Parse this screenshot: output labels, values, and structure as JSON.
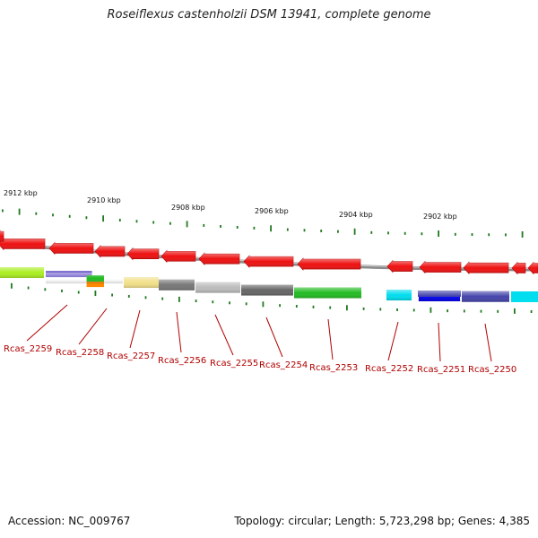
{
  "title": "Roseiflexus castenholzii DSM 13941, complete genome",
  "accession_text": "Accession: NC_009767",
  "summary_text": "Topology: circular; Length: 5,723,298 bp; Genes: 4,385",
  "colors": {
    "cds": "#ee1111",
    "label": "#b00000",
    "tick": "#1f7a1f",
    "backbone": "#8a8a8a"
  },
  "scale": {
    "tick_labels": [
      "2912 kbp",
      "2910 kbp",
      "2908 kbp",
      "2906 kbp",
      "2904 kbp",
      "2902 kbp"
    ]
  },
  "genes": [
    {
      "locus": "Rcas_2259",
      "strand": "-",
      "cog_colors": [
        "#aaee22"
      ]
    },
    {
      "locus": "Rcas_2258",
      "strand": "-",
      "cog_colors": [
        "#7766cc",
        "#22bb22",
        "#ff8800"
      ]
    },
    {
      "locus": "Rcas_2257",
      "strand": "-",
      "cog_colors": [
        "#f2e08a"
      ]
    },
    {
      "locus": "Rcas_2256",
      "strand": "-",
      "cog_colors": [
        "#777777"
      ]
    },
    {
      "locus": "Rcas_2255",
      "strand": "-",
      "cog_colors": [
        "#bbbbbb"
      ]
    },
    {
      "locus": "Rcas_2254",
      "strand": "-",
      "cog_colors": [
        "#666666"
      ]
    },
    {
      "locus": "Rcas_2253",
      "strand": "-",
      "cog_colors": [
        "#22bb22"
      ]
    },
    {
      "locus": "Rcas_2252",
      "strand": "-",
      "cog_colors": [
        "#00ddee"
      ]
    },
    {
      "locus": "Rcas_2251",
      "strand": "-",
      "cog_colors": [
        "#4444aa",
        "#0000ee"
      ]
    },
    {
      "locus": "Rcas_2250",
      "strand": "-",
      "cog_colors": [
        "#4444aa"
      ]
    }
  ]
}
